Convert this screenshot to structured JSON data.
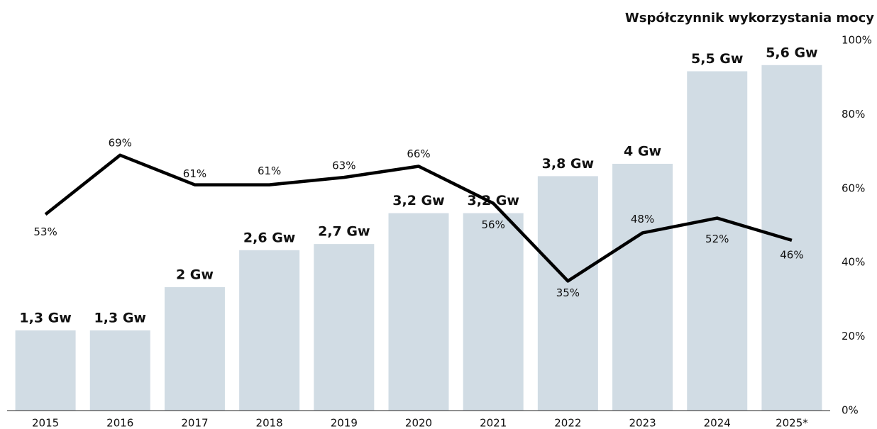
{
  "chart_data": {
    "type": "bar_line",
    "y2label": "Współczynnik wykorzystania mocy",
    "categories": [
      "2015",
      "2016",
      "2017",
      "2018",
      "2019",
      "2020",
      "2021",
      "2022",
      "2023",
      "2024",
      "2025*"
    ],
    "bars": {
      "color": "#d1dce4",
      "values": [
        1.3,
        1.3,
        2,
        2.6,
        2.7,
        3.2,
        3.2,
        3.8,
        4,
        5.5,
        5.6
      ],
      "value_labels": [
        "1,3 Gw",
        "1,3 Gw",
        "2 Gw",
        "2,6 Gw",
        "2,7 Gw",
        "3,2 Gw",
        "3,2 Gw",
        "3,8 Gw",
        "4 Gw",
        "5,5 Gw",
        "5,6 Gw"
      ]
    },
    "line": {
      "color": "#000000",
      "axis": "y2",
      "values": [
        53,
        69,
        61,
        61,
        63,
        66,
        56,
        35,
        48,
        52,
        46
      ],
      "value_labels": [
        "53%",
        "69%",
        "61%",
        "61%",
        "63%",
        "66%",
        "56%",
        "35%",
        "48%",
        "52%",
        "46%"
      ]
    },
    "ylim": [
      0,
      6
    ],
    "y2lim": [
      0,
      100
    ],
    "y2ticks": [
      {
        "value": 0,
        "label": "0%"
      },
      {
        "value": 20,
        "label": "20%"
      },
      {
        "value": 40,
        "label": "40%"
      },
      {
        "value": 60,
        "label": "60%"
      },
      {
        "value": 80,
        "label": "80%"
      },
      {
        "value": 100,
        "label": "100%"
      }
    ]
  }
}
